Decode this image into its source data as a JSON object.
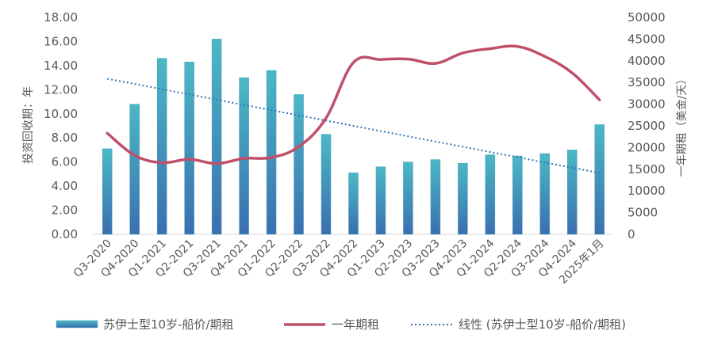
{
  "chart_data": {
    "type": "bar",
    "categories": [
      "Q3-2020",
      "Q4-2020",
      "Q1-2021",
      "Q2-2021",
      "Q3-2021",
      "Q4-2021",
      "Q1-2022",
      "Q2-2022",
      "Q3-2022",
      "Q4-2022",
      "Q1-2023",
      "Q2-2023",
      "Q3-2023",
      "Q4-2023",
      "Q1-2024",
      "Q2-2024",
      "Q3-2024",
      "Q4-2024",
      "2025年1月"
    ],
    "series": [
      {
        "name": "苏伊士型10岁-船价/期租",
        "type": "bar",
        "axis": "left",
        "values": [
          7.1,
          10.8,
          14.6,
          14.3,
          16.2,
          13.0,
          13.6,
          11.6,
          8.3,
          5.1,
          5.6,
          6.0,
          6.2,
          5.9,
          6.6,
          6.5,
          6.7,
          7.0,
          9.1
        ]
      },
      {
        "name": "一年期租",
        "type": "line",
        "axis": "right",
        "values": [
          23300,
          18200,
          16500,
          17300,
          16300,
          17500,
          17700,
          20200,
          26800,
          39600,
          40300,
          40400,
          39400,
          41800,
          42800,
          43300,
          41000,
          37200,
          31000
        ]
      },
      {
        "name": "线性 (苏伊士型10岁-船价/期租)",
        "type": "trendline",
        "axis": "left",
        "values": [
          12.91,
          12.48,
          12.04,
          11.61,
          11.17,
          10.74,
          10.31,
          9.87,
          9.44,
          9.0,
          8.57,
          8.13,
          7.7,
          7.27,
          6.83,
          6.4,
          5.96,
          5.53,
          5.09
        ]
      }
    ],
    "y_left": {
      "label": "投资回收期：年",
      "ylim": [
        0,
        18
      ],
      "ticks": [
        "0.00",
        "2.00",
        "4.00",
        "6.00",
        "8.00",
        "10.00",
        "12.00",
        "14.00",
        "16.00",
        "18.00"
      ]
    },
    "y_right": {
      "label": "一年期租（美金/天）",
      "ylim": [
        0,
        50000
      ],
      "ticks": [
        "0",
        "5000",
        "10000",
        "15000",
        "20000",
        "25000",
        "30000",
        "35000",
        "40000",
        "45000",
        "50000"
      ]
    },
    "grid": false,
    "legend": "bottom",
    "colors": {
      "bar_top": "#4bb8c6",
      "bar_bottom": "#3b6fb0",
      "line": "#c0506a",
      "trend": "#2e75b6",
      "axis": "#d9d9d9",
      "text": "#595959"
    }
  }
}
